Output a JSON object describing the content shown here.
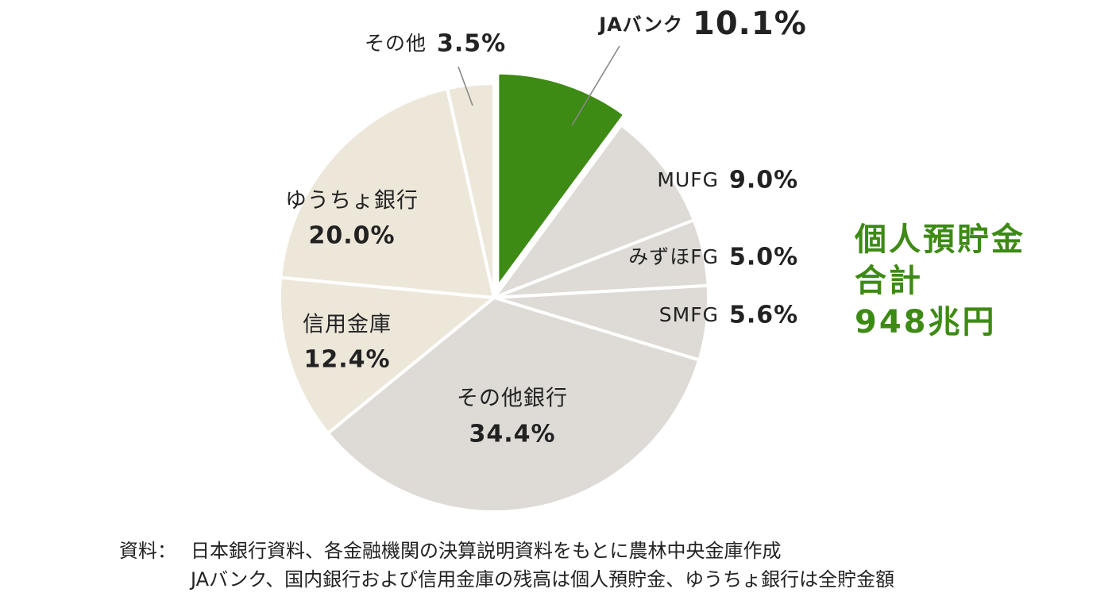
{
  "chart_data": {
    "type": "pie",
    "slices": [
      {
        "label": "JAバンク",
        "value": 10.1,
        "value_label": "10.1%",
        "color": "#3d8a15",
        "exploded": true
      },
      {
        "label": "MUFG",
        "value": 9.0,
        "value_label": "9.0%",
        "color": "#dedad6"
      },
      {
        "label": "みずほFG",
        "value": 5.0,
        "value_label": "5.0%",
        "color": "#dedad6"
      },
      {
        "label": "SMFG",
        "value": 5.6,
        "value_label": "5.6%",
        "color": "#dedad6"
      },
      {
        "label": "その他銀行",
        "value": 34.4,
        "value_label": "34.4%",
        "color": "#dedad6"
      },
      {
        "label": "信用金庫",
        "value": 12.4,
        "value_label": "12.4%",
        "color": "#ede7da"
      },
      {
        "label": "ゆうちょ銀行",
        "value": 20.0,
        "value_label": "20.0%",
        "color": "#ede7da"
      },
      {
        "label": "その他",
        "value": 3.5,
        "value_label": "3.5%",
        "color": "#ede7da"
      }
    ],
    "start": "12 o'clock",
    "direction": "clockwise",
    "colors": {
      "highlight": "#3d8a15",
      "banks": "#dedad6",
      "other_institutions": "#ede7da",
      "separator": "#ffffff",
      "leader_line": "#888888"
    }
  },
  "summary": {
    "line1": "個人預貯金",
    "line2": "合計",
    "line3": "948兆円",
    "color": "#3d8a15"
  },
  "source": {
    "label": "資料：",
    "line1": "日本銀行資料、各金融機関の決算説明資料をもとに農林中央金庫作成",
    "line2": "JAバンク、国内銀行および信用金庫の残高は個人預貯金、ゆうちょ銀行は全貯金額"
  }
}
